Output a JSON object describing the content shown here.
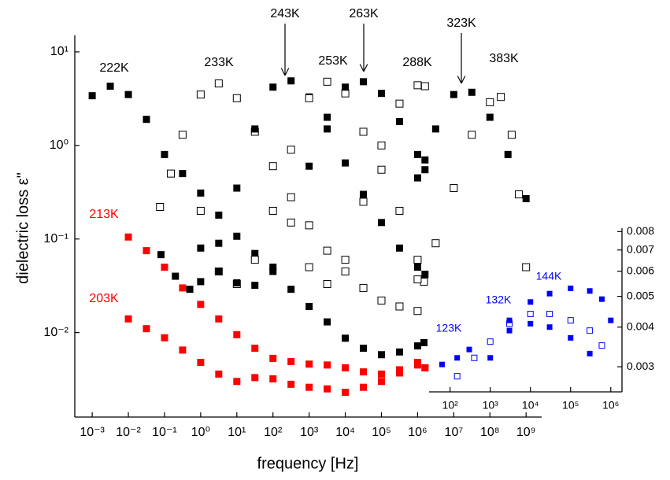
{
  "chart_data": [
    {
      "type": "scatter",
      "x_label": "frequency [Hz]",
      "y_label": "dielectric loss ε\"",
      "log_x": true,
      "log_y": true,
      "xlim": [
        0.00033,
        2700000000
      ],
      "ylim": [
        0.00125,
        15
      ],
      "xticks": [
        {
          "value": 0.001,
          "label": "10⁻³"
        },
        {
          "value": 0.01,
          "label": "10⁻²"
        },
        {
          "value": 0.1,
          "label": "10⁻¹"
        },
        {
          "value": 1,
          "label": "10⁰"
        },
        {
          "value": 10,
          "label": "10¹"
        },
        {
          "value": 100,
          "label": "10²"
        },
        {
          "value": 1000,
          "label": "10³"
        },
        {
          "value": 10000,
          "label": "10⁴"
        },
        {
          "value": 100000,
          "label": "10⁵"
        },
        {
          "value": 1000000,
          "label": "10⁶"
        },
        {
          "value": 10000000,
          "label": "10⁷"
        },
        {
          "value": 100000000,
          "label": "10⁸"
        },
        {
          "value": 1000000000,
          "label": "10⁹"
        }
      ],
      "yticks": [
        {
          "value": 0.01,
          "label": "10⁻²"
        },
        {
          "value": 0.1,
          "label": "10⁻¹"
        },
        {
          "value": 1,
          "label": "10⁰"
        },
        {
          "value": 10,
          "label": "10¹"
        }
      ],
      "series": [
        {
          "name": "222K",
          "color": "#000000",
          "marker": "filled",
          "x": [
            0.001,
            0.00316,
            0.01,
            0.0316,
            0.1,
            0.316,
            1,
            3.16,
            10,
            31.6,
            100,
            316,
            1000,
            3160,
            10000,
            31600,
            100000,
            316000,
            1000000,
            1500000
          ],
          "values": [
            3.4,
            4.3,
            3.5,
            1.9,
            0.8,
            0.5,
            0.31,
            0.18,
            0.107,
            0.07,
            0.045,
            0.029,
            0.019,
            0.013,
            0.0087,
            0.0068,
            0.0058,
            0.0062,
            0.0072,
            0.0078
          ]
        },
        {
          "name": "233K",
          "color": "#000000",
          "marker": "open",
          "x": [
            0.075,
            0.15,
            0.316,
            1,
            3.16,
            10,
            31.6,
            100,
            316,
            1000,
            3160,
            10000,
            31600,
            100000,
            316000,
            1000000
          ],
          "values": [
            0.22,
            0.5,
            1.3,
            3.5,
            4.6,
            3.2,
            1.4,
            0.6,
            0.28,
            0.14,
            0.075,
            0.045,
            0.03,
            0.022,
            0.019,
            0.017
          ]
        },
        {
          "name": "243K",
          "color": "#000000",
          "marker": "filled",
          "x": [
            0.08,
            0.2,
            0.5,
            1,
            3.16,
            10,
            31.6,
            100,
            316,
            1000,
            3160,
            10000,
            31600,
            100000,
            316000,
            1000000,
            1600000
          ],
          "values": [
            0.068,
            0.04,
            0.029,
            0.035,
            0.09,
            0.35,
            1.5,
            4.2,
            4.9,
            3.3,
            1.5,
            0.65,
            0.3,
            0.15,
            0.08,
            0.05,
            0.042
          ]
        },
        {
          "name": "253K",
          "color": "#000000",
          "marker": "open",
          "x": [
            1,
            3.16,
            10,
            31.6,
            100,
            316,
            1000,
            3160,
            10000,
            31600,
            100000,
            316000,
            1000000,
            1500000
          ],
          "values": [
            0.2,
            0.045,
            0.033,
            0.06,
            0.2,
            0.9,
            3.2,
            4.8,
            3.6,
            1.4,
            0.55,
            0.2,
            0.06,
            0.035
          ]
        },
        {
          "name": "263K",
          "color": "#000000",
          "marker": "filled",
          "x": [
            1,
            3.16,
            10,
            31.6,
            100,
            316,
            1000,
            3160,
            10000,
            31600,
            100000,
            316000,
            1000000,
            1600000
          ],
          "values": [
            0.08,
            0.045,
            0.034,
            0.032,
            0.05,
            0.15,
            0.6,
            2.0,
            4.2,
            4.8,
            3.6,
            1.8,
            0.8,
            0.55
          ]
        },
        {
          "name": "288K",
          "color": "#000000",
          "marker": "open",
          "x": [
            316,
            1000,
            3160,
            10000,
            31600,
            100000,
            316000,
            1000000,
            1600000
          ],
          "values": [
            0.15,
            0.05,
            0.033,
            0.06,
            0.25,
            1.0,
            2.8,
            4.4,
            4.3
          ]
        },
        {
          "name": "323K",
          "color": "#000000",
          "marker": "filled",
          "x": [
            1000000,
            1600000,
            3160000,
            10000000,
            31600000,
            100000000,
            316000000,
            1000000000
          ],
          "values": [
            0.45,
            0.7,
            1.5,
            3.5,
            3.7,
            2.0,
            0.8,
            0.27
          ]
        },
        {
          "name": "383K",
          "color": "#000000",
          "marker": "open",
          "x": [
            1000000,
            3160000,
            10000000,
            31600000,
            100000000,
            200000000,
            400000000,
            630000000,
            1000000000
          ],
          "values": [
            0.037,
            0.09,
            0.35,
            1.3,
            2.9,
            3.3,
            1.3,
            0.3,
            0.05
          ]
        },
        {
          "name": "213K",
          "color": "#ff0000",
          "marker": "filled",
          "x": [
            0.01,
            0.0316,
            0.1,
            0.316,
            1,
            3.16,
            10,
            31.6,
            100,
            316,
            1000,
            3160,
            10000,
            31600,
            100000,
            316000,
            1000000,
            1600000
          ],
          "values": [
            0.105,
            0.075,
            0.05,
            0.03,
            0.02,
            0.014,
            0.0095,
            0.0068,
            0.0053,
            0.0049,
            0.0046,
            0.0045,
            0.0042,
            0.0038,
            0.0036,
            0.004,
            0.0048,
            0.0042
          ]
        },
        {
          "name": "203K",
          "color": "#ff0000",
          "marker": "filled",
          "x": [
            0.01,
            0.0316,
            0.1,
            0.316,
            1,
            3.16,
            10,
            31.6,
            100,
            316,
            1000,
            3160,
            10000,
            31600,
            100000,
            316000,
            1000000,
            1600000
          ],
          "values": [
            0.014,
            0.011,
            0.0088,
            0.0065,
            0.0048,
            0.0036,
            0.003,
            0.0033,
            0.0032,
            0.0028,
            0.0026,
            0.0025,
            0.0023,
            0.0026,
            0.003,
            0.0037,
            0.0045,
            0.0042
          ]
        }
      ]
    },
    {
      "type": "scatter",
      "log_x": true,
      "log_y": true,
      "xlim": [
        30,
        1900000
      ],
      "ylim": [
        0.0025,
        0.0082
      ],
      "xticks": [
        {
          "value": 100,
          "label": "10²"
        },
        {
          "value": 1000,
          "label": "10³"
        },
        {
          "value": 10000,
          "label": "10⁴"
        },
        {
          "value": 100000,
          "label": "10⁵"
        },
        {
          "value": 1000000,
          "label": "10⁶"
        }
      ],
      "yticks": [
        0.003,
        0.004,
        0.005,
        0.006,
        0.007,
        0.008
      ],
      "series": [
        {
          "name": "123K",
          "color": "#0000ff",
          "marker": "filled",
          "x": [
            63,
            150,
            300,
            1000,
            3000,
            10000,
            30000,
            100000,
            300000
          ],
          "values": [
            0.00305,
            0.0032,
            0.0034,
            0.0036,
            0.0039,
            0.0041,
            0.004,
            0.0037,
            0.0033
          ]
        },
        {
          "name": "132K",
          "color": "#0000ff",
          "marker": "open",
          "x": [
            150,
            400,
            1000,
            3000,
            10000,
            30000,
            100000,
            300000,
            600000
          ],
          "values": [
            0.0028,
            0.0032,
            0.0036,
            0.0041,
            0.0044,
            0.0044,
            0.0042,
            0.0039,
            0.0035
          ]
        },
        {
          "name": "144K",
          "color": "#0000ff",
          "marker": "filled",
          "x": [
            1000,
            3000,
            10000,
            30000,
            100000,
            300000,
            600000,
            1000000
          ],
          "values": [
            0.0032,
            0.0042,
            0.0048,
            0.0051,
            0.0053,
            0.0052,
            0.0049,
            0.0042
          ]
        }
      ]
    }
  ]
}
